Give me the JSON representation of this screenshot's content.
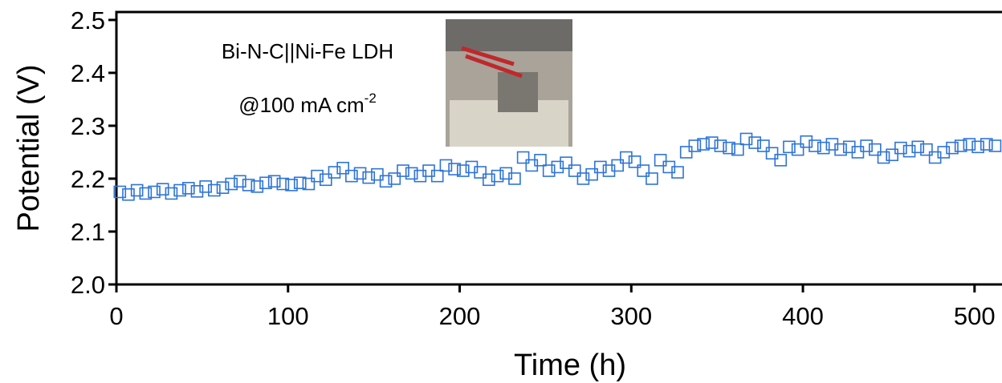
{
  "chart_data": {
    "type": "scatter",
    "x_label": "Time (h)",
    "y_label": "Potential (V)",
    "annotations": [
      {
        "text": "Bi-N-C||Ni-Fe LDH"
      },
      {
        "text": "@100 mA cm",
        "superscript": "-2"
      }
    ],
    "xlim": [
      0,
      516
    ],
    "ylim": [
      2.0,
      2.515
    ],
    "xticks": [
      0,
      100,
      200,
      300,
      400,
      500
    ],
    "yticks": [
      {
        "value": 2,
        "label": "2.0"
      },
      2.1,
      2.2,
      2.3,
      2.4,
      2.5
    ],
    "series": [
      {
        "color": "#2f74d6",
        "x": [
          2,
          7,
          12,
          17,
          22,
          27,
          32,
          37,
          42,
          47,
          52,
          57,
          62,
          67,
          72,
          77,
          82,
          87,
          92,
          97,
          102,
          107,
          112,
          117,
          122,
          127,
          132,
          137,
          142,
          147,
          152,
          157,
          162,
          167,
          172,
          177,
          182,
          187,
          192,
          197,
          202,
          207,
          212,
          217,
          222,
          227,
          232,
          237,
          242,
          247,
          252,
          257,
          262,
          267,
          272,
          277,
          282,
          287,
          292,
          297,
          302,
          307,
          312,
          317,
          322,
          327,
          332,
          337,
          342,
          347,
          352,
          357,
          362,
          367,
          372,
          377,
          382,
          387,
          392,
          397,
          402,
          407,
          412,
          417,
          422,
          427,
          432,
          437,
          442,
          447,
          452,
          457,
          462,
          467,
          472,
          477,
          482,
          487,
          492,
          497,
          502,
          507,
          512
        ],
        "values": [
          2.175,
          2.17,
          2.178,
          2.172,
          2.175,
          2.18,
          2.172,
          2.178,
          2.182,
          2.176,
          2.185,
          2.178,
          2.183,
          2.19,
          2.195,
          2.188,
          2.185,
          2.192,
          2.195,
          2.19,
          2.188,
          2.192,
          2.19,
          2.205,
          2.198,
          2.212,
          2.22,
          2.205,
          2.21,
          2.202,
          2.208,
          2.195,
          2.2,
          2.215,
          2.21,
          2.205,
          2.215,
          2.205,
          2.225,
          2.218,
          2.215,
          2.222,
          2.212,
          2.198,
          2.205,
          2.21,
          2.2,
          2.24,
          2.225,
          2.235,
          2.215,
          2.222,
          2.23,
          2.215,
          2.2,
          2.208,
          2.222,
          2.215,
          2.225,
          2.24,
          2.232,
          2.215,
          2.2,
          2.235,
          2.222,
          2.212,
          2.25,
          2.262,
          2.265,
          2.268,
          2.262,
          2.258,
          2.255,
          2.275,
          2.268,
          2.262,
          2.248,
          2.235,
          2.26,
          2.255,
          2.27,
          2.262,
          2.258,
          2.265,
          2.255,
          2.26,
          2.25,
          2.262,
          2.255,
          2.24,
          2.245,
          2.258,
          2.252,
          2.26,
          2.255,
          2.24,
          2.25,
          2.258,
          2.262,
          2.265,
          2.26,
          2.265,
          2.262
        ]
      }
    ]
  }
}
